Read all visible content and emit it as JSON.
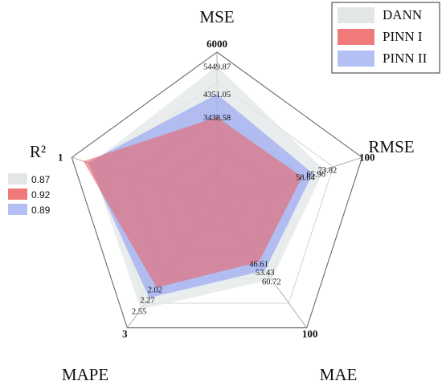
{
  "chart_data": {
    "type": "radar",
    "axes": [
      {
        "key": "mse",
        "label": "MSE",
        "max": 6000,
        "max_label": "6000"
      },
      {
        "key": "rmse",
        "label": "RMSE",
        "max": 100,
        "max_label": "100"
      },
      {
        "key": "mae",
        "label": "MAE",
        "max": 100,
        "max_label": "100"
      },
      {
        "key": "mape",
        "label": "MAPE",
        "max": 3,
        "max_label": "3"
      },
      {
        "key": "r2",
        "label": "R²",
        "max": 1,
        "max_label": "1"
      }
    ],
    "grid_levels": 5,
    "series": [
      {
        "name": "DANN",
        "color": "#e3e7e8",
        "opacity": 0.75,
        "values": {
          "mse": 5449.87,
          "rmse": 73.82,
          "mae": 60.72,
          "mape": 2.55,
          "r2": 0.87
        },
        "labels": {
          "mse": "5449.87",
          "rmse": "73.82",
          "mae": "60.72",
          "mape": "2.55"
        }
      },
      {
        "name": "PINN II",
        "color": "#8e9ef2",
        "opacity": 0.62,
        "values": {
          "mse": 4351.05,
          "rmse": 65.96,
          "mae": 53.43,
          "mape": 2.27,
          "r2": 0.89
        },
        "labels": {
          "mse": "4351.05",
          "rmse": "65.96",
          "mae": "53.43",
          "mape": "2.27"
        }
      },
      {
        "name": "PINN I",
        "color": "#ee5c5c",
        "opacity": 0.55,
        "values": {
          "mse": 3438.58,
          "rmse": 58.64,
          "mae": 46.61,
          "mape": 2.02,
          "r2": 0.92
        },
        "labels": {
          "mse": "3438.58",
          "rmse": "58.64",
          "mae": "46.61",
          "mape": "2.02"
        }
      }
    ],
    "legend": {
      "placement": "top-right",
      "entries": [
        {
          "name": "DANN",
          "color": "#e3e7e8"
        },
        {
          "name": "PINN I",
          "color": "#f07a7a"
        },
        {
          "name": "PINN II",
          "color": "#b4c0f4"
        }
      ]
    },
    "r2_legend": [
      {
        "value": "0.87",
        "color": "#e3e7e8"
      },
      {
        "value": "0.92",
        "color": "#f07a7a"
      },
      {
        "value": "0.89",
        "color": "#b4c0f4"
      }
    ]
  }
}
